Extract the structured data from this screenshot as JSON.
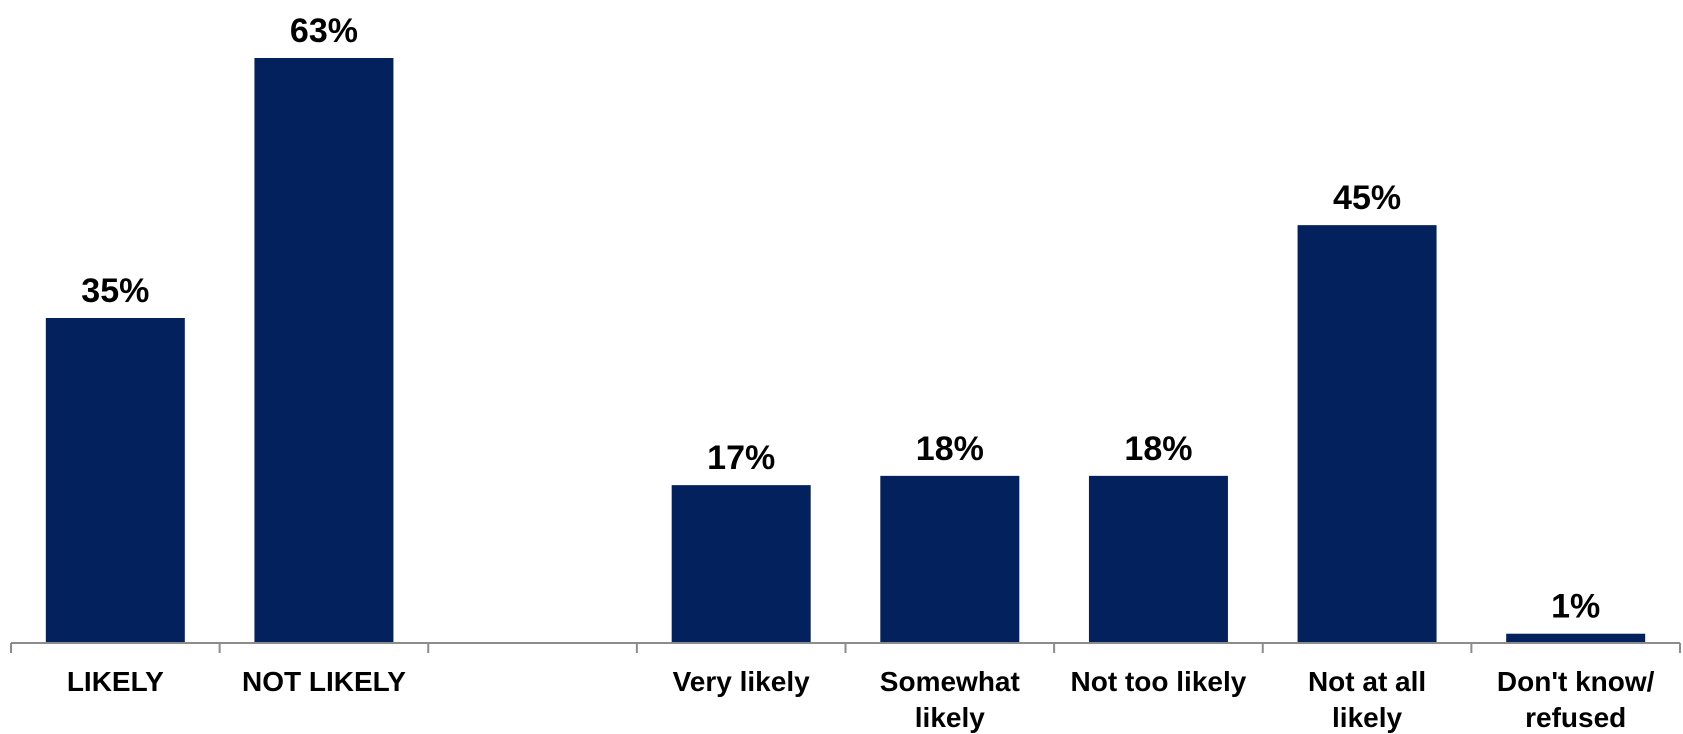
{
  "chart_data": {
    "type": "bar",
    "categories": [
      [
        "LIKELY"
      ],
      [
        "NOT LIKELY"
      ],
      [],
      [
        "Very likely"
      ],
      [
        "Somewhat",
        "likely"
      ],
      [
        "Not too likely"
      ],
      [
        "Not at all",
        "likely"
      ],
      [
        "Don't know/",
        "refused"
      ]
    ],
    "values": [
      35,
      63,
      null,
      17,
      18,
      18,
      45,
      1
    ],
    "value_labels": [
      "35%",
      "63%",
      "",
      "17%",
      "18%",
      "18%",
      "45%",
      "1%"
    ],
    "title": "",
    "xlabel": "",
    "ylabel": "",
    "ylim": [
      0,
      63
    ],
    "grid": false,
    "legend": "none",
    "colors": {
      "bar": "#03215d",
      "axis": "#8c8c8c",
      "text": "#000000"
    }
  }
}
